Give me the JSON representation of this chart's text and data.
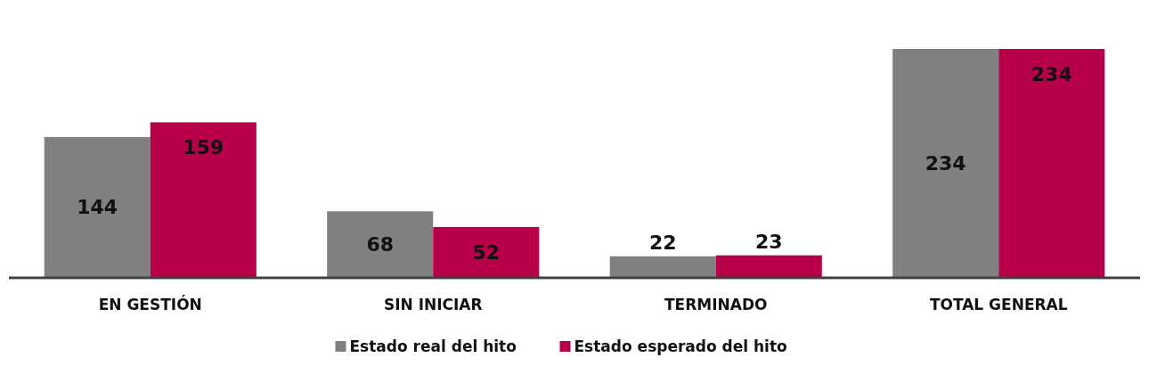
{
  "chart_data": {
    "type": "bar",
    "categories": [
      "EN GESTIÓN",
      "SIN INICIAR",
      "TERMINADO",
      "TOTAL GENERAL"
    ],
    "series": [
      {
        "name": "Estado real del hito",
        "color": "#808080",
        "values": [
          144,
          68,
          22,
          234
        ]
      },
      {
        "name": "Estado esperado del hito",
        "color": "#b8004a",
        "values": [
          159,
          52,
          23,
          234
        ]
      }
    ],
    "data_labels": true,
    "legend": "bottom"
  }
}
